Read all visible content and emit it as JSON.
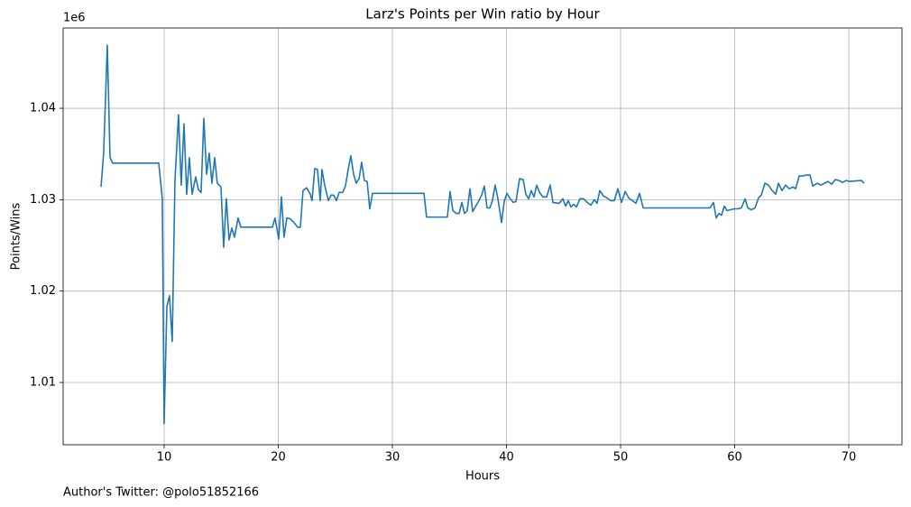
{
  "chart_data": {
    "type": "line",
    "title": "Larz's Points per Win ratio by Hour",
    "x_label": "Hours",
    "y_label": "Points/Wins",
    "y_offset_label": "1e6",
    "footnote": "Author's Twitter: @polo51852166",
    "color": "#1f77b4",
    "grid": true,
    "xlim": [
      1.15,
      74.66
    ],
    "ylim": [
      1.00319,
      1.04879
    ],
    "xticks": [
      10,
      20,
      30,
      40,
      50,
      60,
      70
    ],
    "yticks": [
      1.01,
      1.02,
      1.03,
      1.04
    ],
    "x": [
      4.47,
      4.7,
      5.02,
      5.26,
      5.49,
      9.53,
      9.84,
      10.0,
      10.24,
      10.47,
      10.71,
      10.95,
      11.26,
      11.5,
      11.74,
      11.98,
      12.21,
      12.45,
      12.77,
      13.0,
      13.24,
      13.48,
      13.72,
      13.95,
      14.19,
      14.43,
      14.66,
      14.98,
      15.22,
      15.45,
      15.69,
      15.93,
      16.17,
      16.48,
      16.72,
      19.49,
      19.72,
      20.04,
      20.28,
      20.51,
      20.75,
      21.07,
      21.38,
      21.7,
      21.94,
      22.17,
      22.49,
      22.81,
      22.96,
      23.2,
      23.44,
      23.68,
      23.83,
      24.07,
      24.39,
      24.62,
      24.86,
      25.1,
      25.34,
      25.65,
      25.89,
      26.13,
      26.36,
      26.6,
      26.84,
      27.08,
      27.31,
      27.55,
      27.79,
      28.02,
      28.26,
      32.77,
      33.0,
      34.82,
      35.06,
      35.3,
      35.61,
      35.85,
      36.09,
      36.32,
      36.56,
      36.8,
      37.04,
      37.35,
      37.59,
      37.83,
      38.06,
      38.3,
      38.54,
      38.77,
      39.01,
      39.25,
      39.57,
      39.8,
      40.04,
      40.28,
      40.59,
      40.83,
      41.15,
      41.46,
      41.7,
      41.94,
      42.17,
      42.41,
      42.65,
      42.89,
      43.2,
      43.52,
      43.83,
      44.07,
      44.62,
      44.94,
      45.18,
      45.42,
      45.65,
      45.89,
      46.13,
      46.44,
      46.76,
      47.08,
      47.39,
      47.71,
      47.94,
      48.18,
      48.5,
      48.81,
      49.13,
      49.45,
      49.76,
      50.08,
      50.4,
      50.71,
      51.03,
      51.34,
      51.66,
      51.98,
      57.83,
      58.14,
      58.38,
      58.62,
      58.85,
      59.09,
      59.33,
      59.64,
      59.96,
      60.28,
      60.59,
      60.91,
      61.15,
      61.46,
      61.78,
      62.09,
      62.33,
      62.65,
      62.96,
      63.28,
      63.6,
      63.83,
      64.15,
      64.47,
      64.78,
      65.1,
      65.34,
      65.65,
      65.97,
      66.28,
      66.6,
      66.84,
      67.23,
      67.55,
      67.87,
      68.18,
      68.5,
      68.81,
      69.13,
      69.45,
      69.76,
      70.08,
      71.11,
      71.34
    ],
    "values": [
      1.0314,
      1.0351,
      1.0469,
      1.0346,
      1.034,
      1.034,
      1.0301,
      1.0055,
      1.0183,
      1.0195,
      1.0145,
      1.0321,
      1.0393,
      1.0316,
      1.0383,
      1.0306,
      1.0346,
      1.0306,
      1.0325,
      1.0311,
      1.0308,
      1.0389,
      1.0328,
      1.0351,
      1.0318,
      1.0346,
      1.0318,
      1.0314,
      1.0248,
      1.0301,
      1.0256,
      1.0269,
      1.0259,
      1.028,
      1.027,
      1.027,
      1.028,
      1.0257,
      1.0303,
      1.0259,
      1.028,
      1.0279,
      1.0275,
      1.027,
      1.027,
      1.031,
      1.0313,
      1.0306,
      1.0299,
      1.0334,
      1.0333,
      1.0299,
      1.0333,
      1.0316,
      1.0299,
      1.0305,
      1.0305,
      1.0299,
      1.0308,
      1.0308,
      1.0315,
      1.0333,
      1.0348,
      1.0328,
      1.0318,
      1.0323,
      1.0341,
      1.0321,
      1.032,
      1.029,
      1.0307,
      1.0307,
      1.0281,
      1.0281,
      1.0309,
      1.0288,
      1.0285,
      1.0285,
      1.0297,
      1.0285,
      1.0288,
      1.0312,
      1.0287,
      1.0294,
      1.0299,
      1.0305,
      1.0315,
      1.0291,
      1.0291,
      1.0299,
      1.0316,
      1.0301,
      1.0275,
      1.0298,
      1.0307,
      1.0302,
      1.0297,
      1.0298,
      1.0323,
      1.0322,
      1.0306,
      1.0301,
      1.031,
      1.0303,
      1.0316,
      1.0308,
      1.0303,
      1.0303,
      1.0316,
      1.0297,
      1.0296,
      1.0301,
      1.0293,
      1.0299,
      1.0292,
      1.0295,
      1.0292,
      1.0301,
      1.0301,
      1.0297,
      1.0294,
      1.03,
      1.0296,
      1.031,
      1.0304,
      1.0302,
      1.0299,
      1.0299,
      1.0312,
      1.0297,
      1.0309,
      1.0302,
      1.0299,
      1.0296,
      1.0307,
      1.0291,
      1.0291,
      1.0297,
      1.028,
      1.0285,
      1.0283,
      1.0293,
      1.0288,
      1.0289,
      1.029,
      1.029,
      1.0291,
      1.0301,
      1.0291,
      1.0289,
      1.0291,
      1.0302,
      1.0305,
      1.0318,
      1.0316,
      1.031,
      1.0306,
      1.0318,
      1.031,
      1.0316,
      1.0312,
      1.0314,
      1.0312,
      1.0326,
      1.0326,
      1.0327,
      1.0327,
      1.0315,
      1.0318,
      1.0316,
      1.0318,
      1.032,
      1.0317,
      1.0322,
      1.0321,
      1.0319,
      1.0321,
      1.032,
      1.0321,
      1.0318
    ]
  }
}
